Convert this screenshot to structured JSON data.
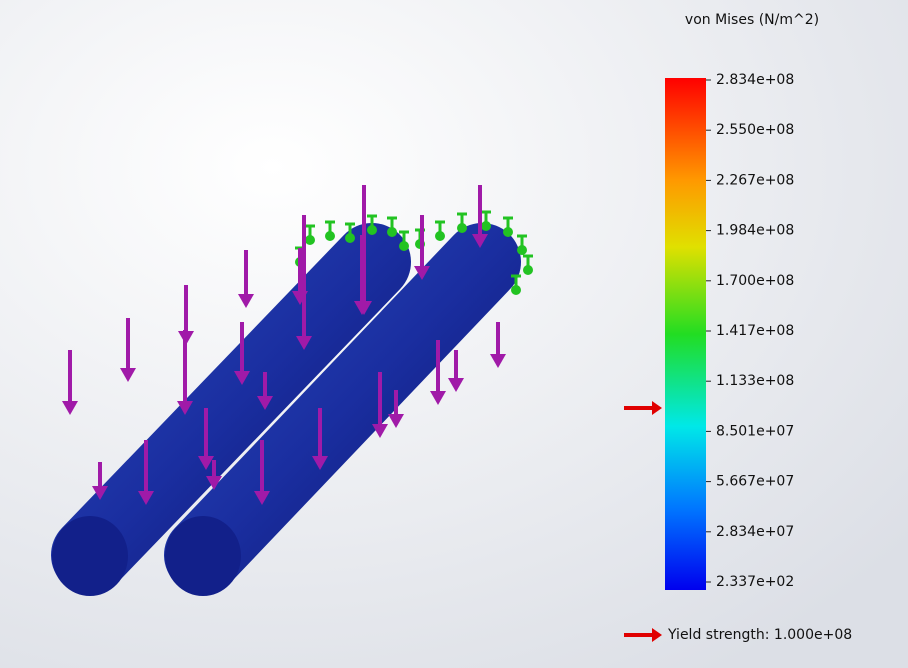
{
  "legend": {
    "title": "von Mises (N/m^2)",
    "labels": [
      "2.834e+08",
      "2.550e+08",
      "2.267e+08",
      "1.984e+08",
      "1.700e+08",
      "1.417e+08",
      "1.133e+08",
      "8.501e+07",
      "5.667e+07",
      "2.834e+07",
      "2.337e+02"
    ],
    "yield_label": "Yield strength: 1.000e+08"
  }
}
